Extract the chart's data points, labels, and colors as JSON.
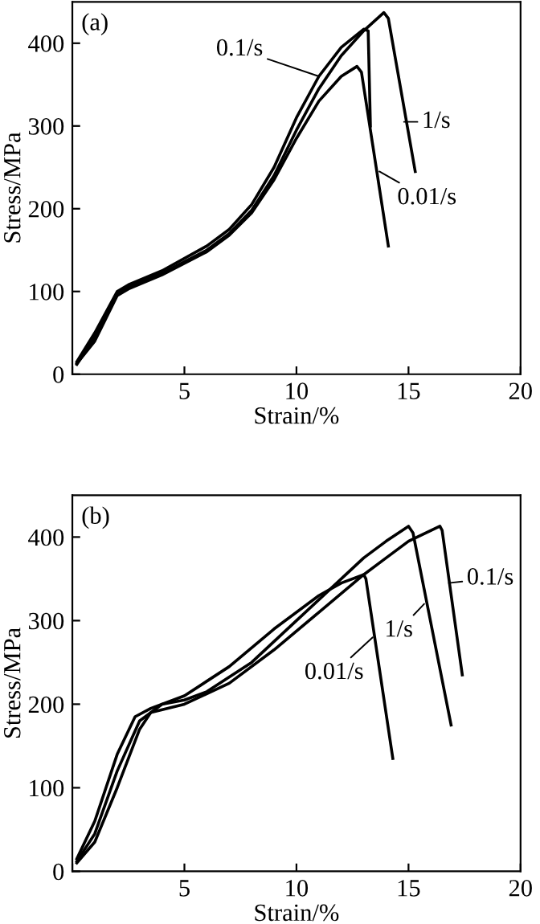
{
  "chart_data": [
    {
      "type": "line",
      "xlabel": "Strain/%",
      "ylabel": "Stress/MPa",
      "xlim": [
        0,
        20
      ],
      "ylim": [
        0,
        450
      ],
      "xticks": [
        {
          "value": 0,
          "label": null
        },
        5,
        10,
        15,
        20
      ],
      "yticks": [
        0,
        100,
        200,
        300,
        400
      ],
      "grid": false,
      "legend": false,
      "marker": "none",
      "line_style": "solid",
      "series": [
        {
          "color": "#000000",
          "x": [
            0.2,
            1,
            2,
            2.5,
            4,
            6,
            7,
            8,
            9,
            10,
            11,
            12,
            13,
            13.2,
            13.3
          ],
          "values": [
            15,
            50,
            100,
            108,
            125,
            155,
            175,
            205,
            250,
            310,
            360,
            395,
            417,
            415,
            300
          ]
        },
        {
          "color": "#000000",
          "x": [
            0.2,
            1,
            2,
            2.5,
            4,
            6,
            7,
            8,
            9,
            10,
            11,
            12,
            13,
            13.9,
            14.1,
            15.3
          ],
          "values": [
            12,
            45,
            97,
            105,
            122,
            150,
            170,
            198,
            240,
            295,
            345,
            385,
            415,
            437,
            430,
            245
          ]
        },
        {
          "color": "#000000",
          "x": [
            0.2,
            1,
            2,
            2.5,
            4,
            6,
            7,
            8,
            9,
            10,
            11,
            12,
            12.7,
            12.9,
            14.1
          ],
          "values": [
            13,
            40,
            95,
            103,
            120,
            148,
            168,
            195,
            235,
            285,
            330,
            360,
            372,
            365,
            155
          ]
        }
      ],
      "annotations": [
        "(a)",
        {
          "text": "0.1/s",
          "x": 11,
          "y": 360
        },
        {
          "text": "1/s",
          "x": 14.8,
          "y": 305
        },
        {
          "text": "0.01/s",
          "x": 13.7,
          "y": 245
        }
      ]
    },
    {
      "type": "line",
      "xlabel": "Strain/%",
      "ylabel": "Stress/MPa",
      "xlim": [
        0,
        20
      ],
      "ylim": [
        0,
        450
      ],
      "xticks": [
        {
          "value": 0,
          "label": null
        },
        5,
        10,
        15,
        20
      ],
      "yticks": [
        0,
        100,
        200,
        300,
        400
      ],
      "grid": false,
      "legend": false,
      "marker": "none",
      "line_style": "solid",
      "series": [
        {
          "color": "#000000",
          "x": [
            0.2,
            1,
            2,
            2.8,
            3.5,
            5,
            7,
            9,
            11,
            12,
            13,
            13.1,
            14.3
          ],
          "values": [
            15,
            60,
            140,
            185,
            195,
            210,
            245,
            290,
            330,
            345,
            355,
            350,
            135
          ]
        },
        {
          "color": "#000000",
          "x": [
            0.2,
            1,
            2,
            3,
            4,
            5,
            6,
            8,
            10,
            12,
            13,
            14,
            15,
            15.2,
            16.9
          ],
          "values": [
            12,
            45,
            120,
            180,
            200,
            205,
            215,
            250,
            300,
            350,
            375,
            395,
            413,
            405,
            175
          ]
        },
        {
          "color": "#000000",
          "x": [
            0.2,
            1,
            2,
            3,
            3.5,
            5,
            7,
            9,
            11,
            13,
            14,
            15,
            16.4,
            16.5,
            17.4
          ],
          "values": [
            10,
            35,
            100,
            170,
            190,
            200,
            225,
            265,
            310,
            355,
            375,
            395,
            413,
            408,
            235
          ]
        }
      ],
      "annotations": [
        "(b)",
        {
          "text": "0.01/s",
          "x": 13.4,
          "y": 280
        },
        {
          "text": "1/s",
          "x": 15.7,
          "y": 320
        },
        {
          "text": "0.1/s",
          "x": 16.8,
          "y": 345
        }
      ]
    }
  ]
}
